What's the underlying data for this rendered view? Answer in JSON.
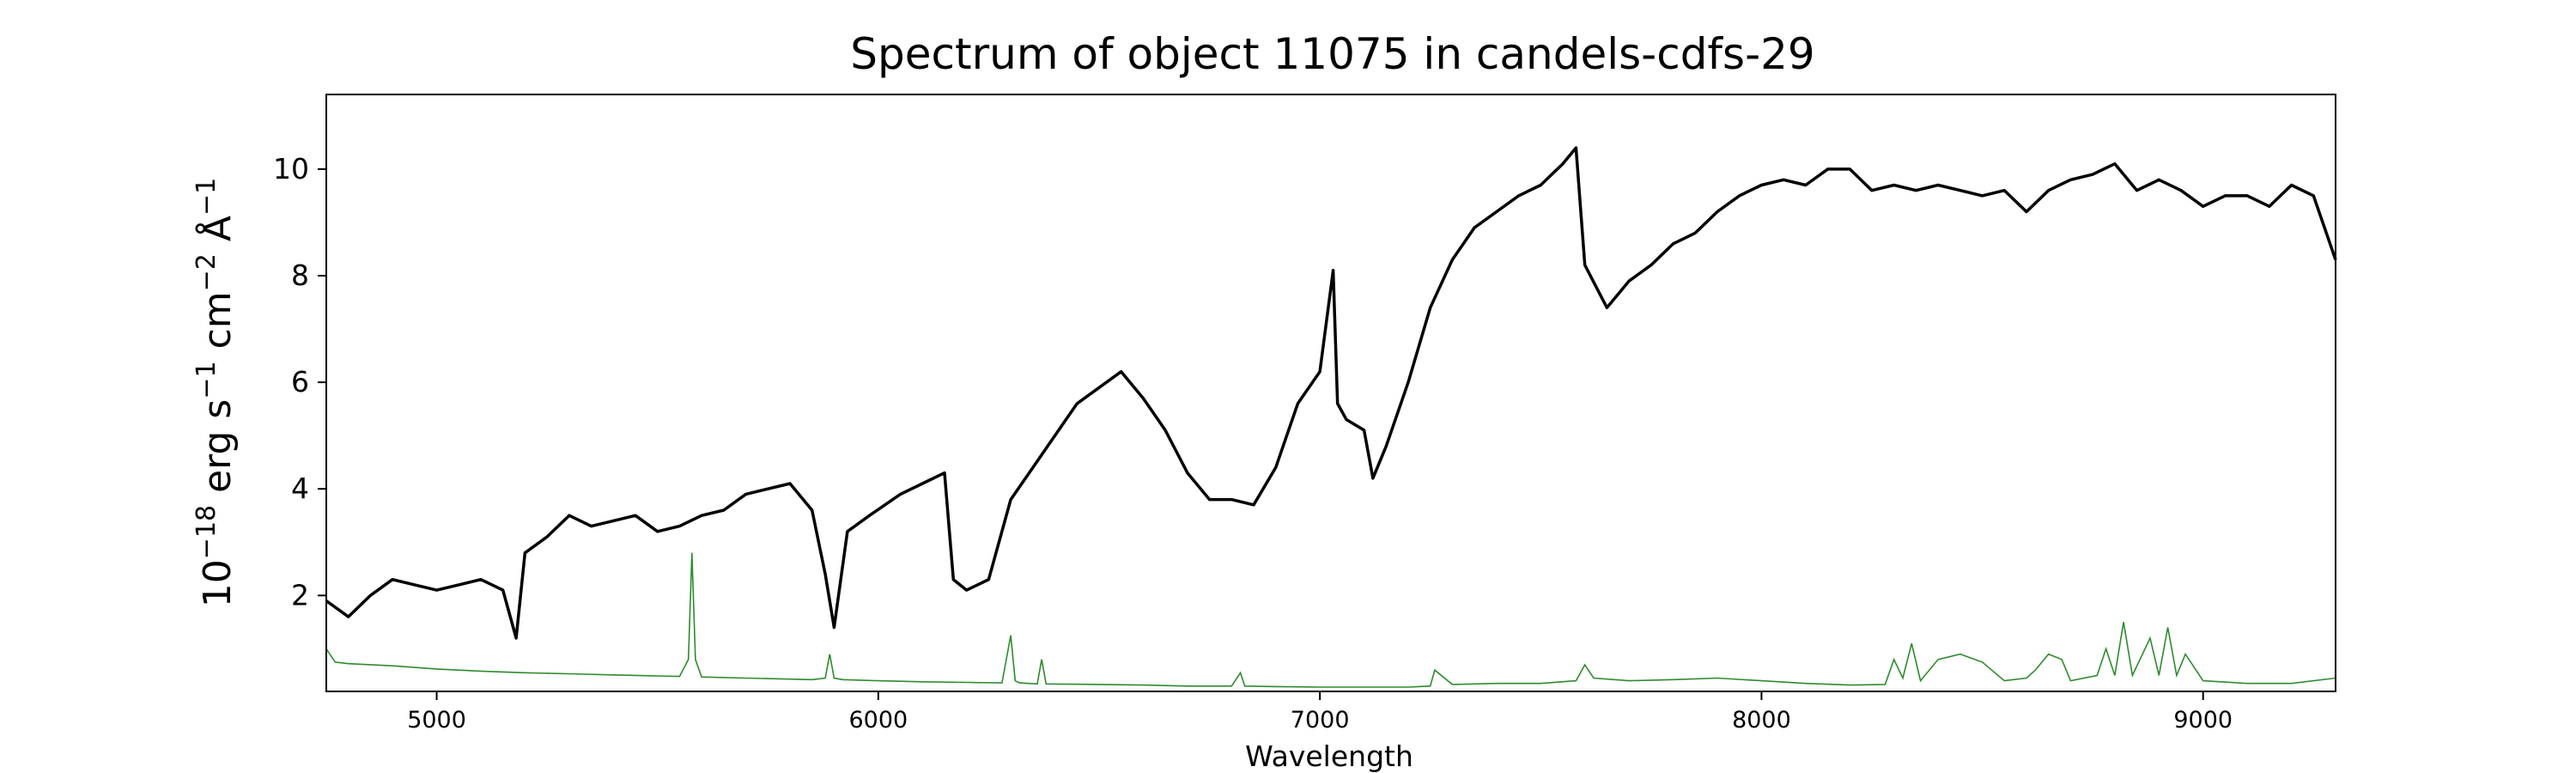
{
  "chart_data": {
    "type": "line",
    "title": "Spectrum of object 11075 in candels-cdfs-29",
    "xlabel": "Wavelength",
    "ylabel": {
      "base": "10",
      "exp": "−18",
      "erg": " erg s",
      "s_exp": "−1",
      "cm": " cm",
      "cm_exp": "−2",
      "ang": " Å",
      "ang_exp": "−1"
    },
    "xlim": [
      4750,
      9300
    ],
    "ylim": [
      0.2,
      11.4
    ],
    "xticks": [
      5000,
      6000,
      7000,
      8000,
      9000
    ],
    "yticks": [
      2,
      4,
      6,
      8,
      10
    ],
    "grid": false,
    "series": [
      {
        "role": "flux",
        "color": "#000000",
        "x": [
          4750,
          4800,
          4850,
          4900,
          4950,
          5000,
          5050,
          5100,
          5150,
          5180,
          5200,
          5250,
          5300,
          5350,
          5400,
          5450,
          5500,
          5550,
          5600,
          5650,
          5700,
          5750,
          5800,
          5850,
          5880,
          5900,
          5930,
          5980,
          6050,
          6100,
          6150,
          6170,
          6200,
          6250,
          6300,
          6350,
          6400,
          6450,
          6500,
          6550,
          6600,
          6650,
          6700,
          6750,
          6800,
          6850,
          6900,
          6950,
          7000,
          7030,
          7040,
          7060,
          7100,
          7120,
          7150,
          7200,
          7250,
          7300,
          7350,
          7400,
          7450,
          7500,
          7550,
          7580,
          7600,
          7650,
          7700,
          7750,
          7800,
          7850,
          7900,
          7950,
          8000,
          8050,
          8100,
          8150,
          8200,
          8250,
          8300,
          8350,
          8400,
          8450,
          8500,
          8550,
          8600,
          8650,
          8700,
          8750,
          8800,
          8850,
          8900,
          8950,
          9000,
          9050,
          9100,
          9150,
          9200,
          9250,
          9300
        ],
        "y": [
          1.9,
          1.6,
          2.0,
          2.3,
          2.2,
          2.1,
          2.2,
          2.3,
          2.1,
          1.2,
          2.8,
          3.1,
          3.5,
          3.3,
          3.4,
          3.5,
          3.2,
          3.3,
          3.5,
          3.6,
          3.9,
          4.0,
          4.1,
          3.6,
          2.4,
          1.4,
          3.2,
          3.5,
          3.9,
          4.1,
          4.3,
          2.3,
          2.1,
          2.3,
          3.8,
          4.4,
          5.0,
          5.6,
          5.9,
          6.2,
          5.7,
          5.1,
          4.3,
          3.8,
          3.8,
          3.7,
          4.4,
          5.6,
          6.2,
          8.1,
          5.6,
          5.3,
          5.1,
          4.2,
          4.8,
          6.0,
          7.4,
          8.3,
          8.9,
          9.2,
          9.5,
          9.7,
          10.1,
          10.4,
          8.2,
          7.4,
          7.9,
          8.2,
          8.6,
          8.8,
          9.2,
          9.5,
          9.7,
          9.8,
          9.7,
          10.0,
          10.0,
          9.6,
          9.7,
          9.6,
          9.7,
          9.6,
          9.5,
          9.6,
          9.2,
          9.6,
          9.8,
          9.9,
          10.1,
          9.6,
          9.8,
          9.6,
          9.3,
          9.5,
          9.5,
          9.3,
          9.7,
          9.5,
          8.3
        ]
      },
      {
        "role": "error",
        "color": "#2e8b2e",
        "x": [
          4750,
          4770,
          4800,
          4900,
          5000,
          5100,
          5200,
          5300,
          5400,
          5500,
          5550,
          5570,
          5578,
          5586,
          5600,
          5700,
          5800,
          5850,
          5880,
          5890,
          5900,
          5920,
          6000,
          6100,
          6200,
          6280,
          6300,
          6310,
          6320,
          6360,
          6370,
          6380,
          6500,
          6600,
          6700,
          6800,
          6820,
          6830,
          6900,
          7000,
          7100,
          7200,
          7250,
          7260,
          7300,
          7400,
          7500,
          7580,
          7600,
          7620,
          7700,
          7800,
          7900,
          8000,
          8100,
          8200,
          8280,
          8300,
          8320,
          8340,
          8360,
          8400,
          8450,
          8500,
          8550,
          8600,
          8620,
          8650,
          8680,
          8700,
          8760,
          8780,
          8800,
          8820,
          8840,
          8880,
          8900,
          8920,
          8940,
          8960,
          9000,
          9100,
          9200,
          9300
        ],
        "y": [
          1.0,
          0.75,
          0.72,
          0.68,
          0.62,
          0.58,
          0.55,
          0.53,
          0.51,
          0.49,
          0.48,
          0.8,
          2.8,
          0.8,
          0.47,
          0.45,
          0.43,
          0.42,
          0.45,
          0.9,
          0.45,
          0.42,
          0.4,
          0.38,
          0.37,
          0.36,
          1.25,
          0.4,
          0.36,
          0.34,
          0.8,
          0.34,
          0.33,
          0.32,
          0.3,
          0.3,
          0.55,
          0.3,
          0.29,
          0.28,
          0.28,
          0.28,
          0.3,
          0.6,
          0.33,
          0.35,
          0.35,
          0.4,
          0.7,
          0.45,
          0.4,
          0.42,
          0.45,
          0.4,
          0.35,
          0.32,
          0.33,
          0.8,
          0.45,
          1.1,
          0.4,
          0.8,
          0.9,
          0.75,
          0.4,
          0.45,
          0.6,
          0.9,
          0.8,
          0.4,
          0.5,
          1.0,
          0.5,
          1.5,
          0.5,
          1.2,
          0.5,
          1.4,
          0.5,
          0.9,
          0.4,
          0.35,
          0.35,
          0.45
        ]
      }
    ]
  }
}
